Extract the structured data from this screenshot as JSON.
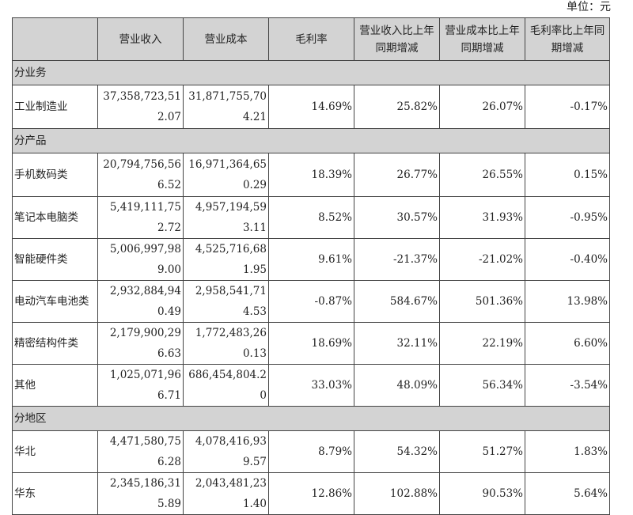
{
  "unit": "单位：元",
  "headers": [
    "",
    "营业收入",
    "营业成本",
    "毛利率",
    "营业收入比上年同期增减",
    "营业成本比上年同期增减",
    "毛利率比上年同期增减"
  ],
  "sections": [
    {
      "title": "分业务",
      "rows": [
        [
          "工业制造业",
          "37,358,723,512.07",
          "31,871,755,704.21",
          "14.69%",
          "25.82%",
          "26.07%",
          "-0.17%"
        ]
      ]
    },
    {
      "title": "分产品",
      "rows": [
        [
          "手机数码类",
          "20,794,756,566.52",
          "16,971,364,650.29",
          "18.39%",
          "26.77%",
          "26.55%",
          "0.15%"
        ],
        [
          "笔记本电脑类",
          "5,419,111,752.72",
          "4,957,194,593.11",
          "8.52%",
          "30.57%",
          "31.93%",
          "-0.95%"
        ],
        [
          "智能硬件类",
          "5,006,997,989.00",
          "4,525,716,681.95",
          "9.61%",
          "-21.37%",
          "-21.02%",
          "-0.40%"
        ],
        [
          "电动汽车电池类",
          "2,932,884,940.49",
          "2,958,541,714.53",
          "-0.87%",
          "584.67%",
          "501.36%",
          "13.98%"
        ],
        [
          "精密结构件类",
          "2,179,900,296.63",
          "1,772,483,260.13",
          "18.69%",
          "32.11%",
          "22.19%",
          "6.60%"
        ],
        [
          "其他",
          "1,025,071,966.71",
          "686,454,804.20",
          "33.03%",
          "48.09%",
          "56.34%",
          "-3.54%"
        ]
      ]
    },
    {
      "title": "分地区",
      "rows": [
        [
          "华北",
          "4,471,580,756.28",
          "4,078,416,939.57",
          "8.79%",
          "54.32%",
          "51.27%",
          "1.83%"
        ],
        [
          "华东",
          "2,345,186,315.89",
          "2,043,481,231.40",
          "12.86%",
          "102.88%",
          "90.53%",
          "5.64%"
        ]
      ]
    }
  ]
}
